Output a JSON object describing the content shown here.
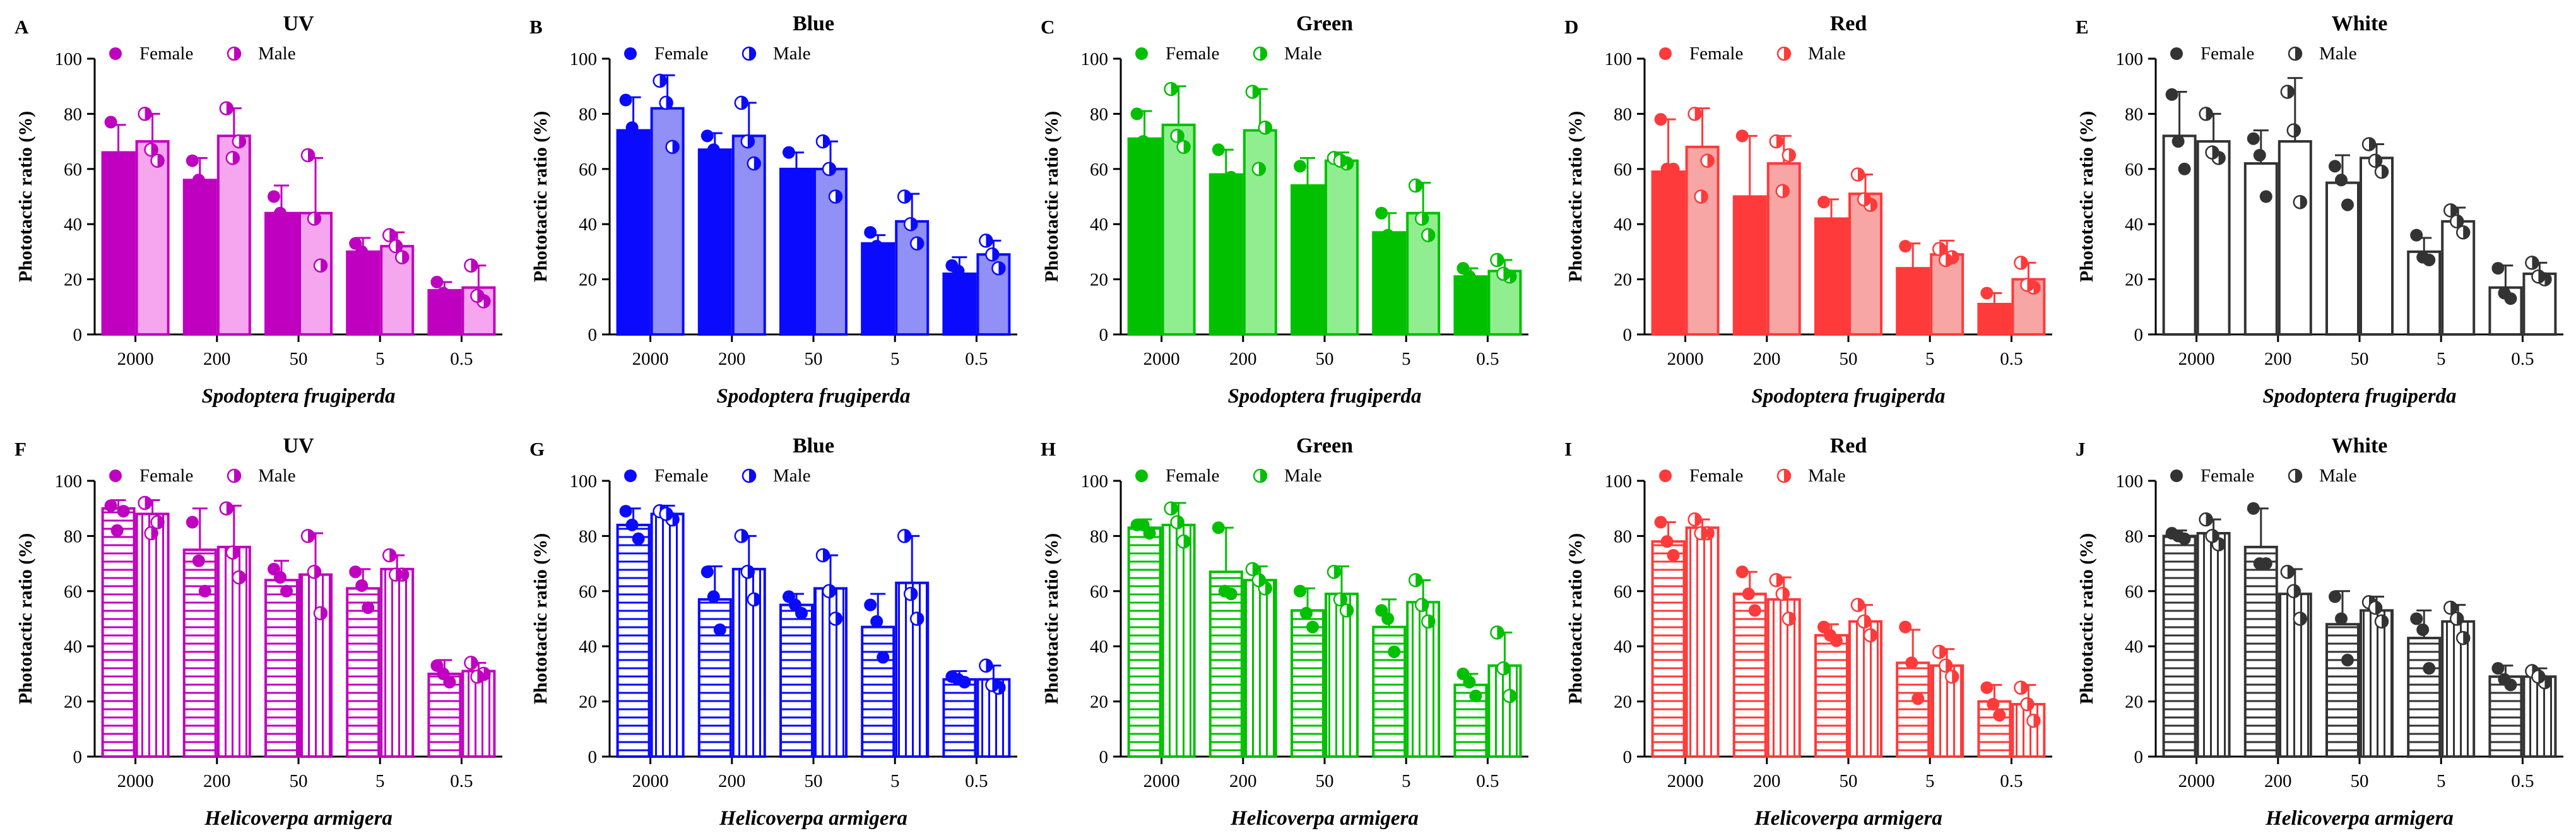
{
  "chart_data": [
    {
      "id": "A",
      "type": "bar",
      "title": "UV",
      "color": "#c000c0",
      "light": "#f5a6ee",
      "species": "Spodoptera frugiperda",
      "hatch": false,
      "xlabel": "Spodoptera frugiperda",
      "ylabel": "Phototactic ratio (%)",
      "ylim": [
        0,
        100
      ],
      "yticks": [
        "0",
        "20",
        "40",
        "60",
        "80",
        "100"
      ],
      "categories": [
        "2000",
        "200",
        "50",
        "5",
        "0.5"
      ],
      "series": [
        {
          "name": "Female",
          "values": [
            66,
            56,
            44,
            30,
            16
          ],
          "errors": [
            10,
            8,
            10,
            5,
            3
          ],
          "points": [
            [
              77,
              63,
              59
            ],
            [
              63,
              49,
              56
            ],
            [
              50,
              38,
              44
            ],
            [
              33,
              27,
              30
            ],
            [
              19,
              14,
              15
            ]
          ]
        },
        {
          "name": "Male",
          "values": [
            70,
            72,
            44,
            32,
            17
          ],
          "errors": [
            10,
            10,
            20,
            5,
            8
          ],
          "points": [
            [
              80,
              63,
              67
            ],
            [
              82,
              70,
              64
            ],
            [
              65,
              25,
              42
            ],
            [
              36,
              28,
              32
            ],
            [
              25,
              12,
              14
            ]
          ]
        }
      ]
    },
    {
      "id": "B",
      "type": "bar",
      "title": "Blue",
      "color": "#0a0aff",
      "light": "#9090f6",
      "species": "Spodoptera frugiperda",
      "hatch": false,
      "xlabel": "Spodoptera frugiperda",
      "ylabel": "Phototactic ratio (%)",
      "ylim": [
        0,
        100
      ],
      "yticks": [
        "0",
        "20",
        "40",
        "60",
        "80",
        "100"
      ],
      "categories": [
        "2000",
        "200",
        "50",
        "5",
        "0.5"
      ],
      "series": [
        {
          "name": "Female",
          "values": [
            74,
            67,
            60,
            33,
            22
          ],
          "errors": [
            12,
            6,
            6,
            3,
            6
          ],
          "points": [
            [
              85,
              62,
              75
            ],
            [
              72,
              62,
              67
            ],
            [
              66,
              57,
              58
            ],
            [
              37,
              30,
              32
            ],
            [
              25,
              17,
              23
            ]
          ]
        },
        {
          "name": "Male",
          "values": [
            82,
            72,
            60,
            41,
            29
          ],
          "errors": [
            12,
            12,
            10,
            10,
            5
          ],
          "points": [
            [
              92,
              68,
              84
            ],
            [
              84,
              62,
              70
            ],
            [
              70,
              50,
              60
            ],
            [
              50,
              33,
              40
            ],
            [
              34,
              24,
              29
            ]
          ]
        }
      ]
    },
    {
      "id": "C",
      "type": "bar",
      "title": "Green",
      "color": "#00c000",
      "light": "#90ee90",
      "species": "Spodoptera frugiperda",
      "hatch": false,
      "xlabel": "Spodoptera frugiperda",
      "ylabel": "Phototactic ratio (%)",
      "ylim": [
        0,
        100
      ],
      "yticks": [
        "0",
        "20",
        "40",
        "60",
        "80",
        "100"
      ],
      "categories": [
        "2000",
        "200",
        "50",
        "5",
        "0.5"
      ],
      "series": [
        {
          "name": "Female",
          "values": [
            71,
            58,
            54,
            37,
            21
          ],
          "errors": [
            10,
            9,
            10,
            7,
            3
          ],
          "points": [
            [
              80,
              64,
              70
            ],
            [
              67,
              57,
              52
            ],
            [
              61,
              52,
              50
            ],
            [
              44,
              33,
              36
            ],
            [
              24,
              19,
              21
            ]
          ]
        },
        {
          "name": "Male",
          "values": [
            76,
            74,
            63,
            44,
            23
          ],
          "errors": [
            14,
            15,
            3,
            11,
            4
          ],
          "points": [
            [
              89,
              68,
              72
            ],
            [
              88,
              75,
              60
            ],
            [
              64,
              62,
              63
            ],
            [
              54,
              36,
              42
            ],
            [
              27,
              21,
              22
            ]
          ]
        }
      ]
    },
    {
      "id": "D",
      "type": "bar",
      "title": "Red",
      "color": "#ff3a3a",
      "light": "#f7a5a5",
      "species": "Spodoptera frugiperda",
      "hatch": false,
      "xlabel": "Spodoptera frugiperda",
      "ylabel": "Phototactic ratio (%)",
      "ylim": [
        0,
        100
      ],
      "yticks": [
        "0",
        "20",
        "40",
        "60",
        "80",
        "100"
      ],
      "categories": [
        "2000",
        "200",
        "50",
        "5",
        "0.5"
      ],
      "series": [
        {
          "name": "Female",
          "values": [
            59,
            50,
            42,
            24,
            11
          ],
          "errors": [
            19,
            22,
            7,
            9,
            4
          ],
          "points": [
            [
              78,
              60,
              60
            ],
            [
              72,
              45,
              35
            ],
            [
              48,
              40,
              39
            ],
            [
              32,
              20,
              21
            ],
            [
              15,
              9,
              8
            ]
          ]
        },
        {
          "name": "Male",
          "values": [
            68,
            62,
            51,
            29,
            20
          ],
          "errors": [
            14,
            10,
            7,
            5,
            6
          ],
          "points": [
            [
              80,
              63,
              50
            ],
            [
              70,
              65,
              52
            ],
            [
              58,
              47,
              49
            ],
            [
              31,
              28,
              27
            ],
            [
              26,
              17,
              18
            ]
          ]
        }
      ]
    },
    {
      "id": "E",
      "type": "bar",
      "title": "White",
      "color": "#333333",
      "light": "#909090",
      "species": "Spodoptera frugiperda",
      "hatch": false,
      "xlabel": "Spodoptera frugiperda",
      "ylabel": "Phototactic ratio (%)",
      "ylim": [
        0,
        100
      ],
      "yticks": [
        "0",
        "20",
        "40",
        "60",
        "80",
        "100"
      ],
      "categories": [
        "2000",
        "200",
        "50",
        "5",
        "0.5"
      ],
      "series": [
        {
          "name": "Female",
          "values": [
            72,
            62,
            55,
            30,
            17
          ],
          "errors": [
            16,
            12,
            10,
            5,
            8
          ],
          "points": [
            [
              87,
              60,
              70
            ],
            [
              71,
              50,
              65
            ],
            [
              61,
              47,
              56
            ],
            [
              36,
              27,
              28
            ],
            [
              24,
              13,
              15
            ]
          ]
        },
        {
          "name": "Male",
          "values": [
            70,
            70,
            64,
            41,
            22
          ],
          "errors": [
            10,
            23,
            5,
            5,
            4
          ],
          "points": [
            [
              80,
              64,
              66
            ],
            [
              88,
              48,
              74
            ],
            [
              69,
              59,
              63
            ],
            [
              45,
              37,
              41
            ],
            [
              26,
              20,
              21
            ]
          ]
        }
      ]
    },
    {
      "id": "F",
      "type": "bar",
      "title": "UV",
      "color": "#c000c0",
      "light": "#f5a6ee",
      "species": "Helicoverpa armigera",
      "hatch": true,
      "xlabel": "Helicoverpa armigera",
      "ylabel": "Phototactic ratio (%)",
      "ylim": [
        0,
        100
      ],
      "yticks": [
        "0",
        "20",
        "40",
        "60",
        "80",
        "100"
      ],
      "categories": [
        "2000",
        "200",
        "50",
        "5",
        "0.5"
      ],
      "series": [
        {
          "name": "Female",
          "values": [
            90,
            75,
            64,
            61,
            30
          ],
          "errors": [
            3,
            15,
            7,
            7,
            5
          ],
          "points": [
            [
              91,
              89,
              82
            ],
            [
              85,
              60,
              71
            ],
            [
              68,
              60,
              65
            ],
            [
              67,
              54,
              62
            ],
            [
              33,
              27,
              30
            ]
          ]
        },
        {
          "name": "Male",
          "values": [
            88,
            76,
            66,
            68,
            31
          ],
          "errors": [
            5,
            15,
            15,
            5,
            3
          ],
          "points": [
            [
              92,
              85,
              81
            ],
            [
              90,
              65,
              74
            ],
            [
              80,
              52,
              67
            ],
            [
              73,
              66,
              66
            ],
            [
              34,
              30,
              29
            ]
          ]
        }
      ]
    },
    {
      "id": "G",
      "type": "bar",
      "title": "Blue",
      "color": "#0a0aff",
      "light": "#9090f6",
      "species": "Helicoverpa armigera",
      "hatch": true,
      "xlabel": "Helicoverpa armigera",
      "ylabel": "Phototactic ratio (%)",
      "ylim": [
        0,
        100
      ],
      "yticks": [
        "0",
        "20",
        "40",
        "60",
        "80",
        "100"
      ],
      "categories": [
        "2000",
        "200",
        "50",
        "5",
        "0.5"
      ],
      "series": [
        {
          "name": "Female",
          "values": [
            84,
            57,
            55,
            47,
            28
          ],
          "errors": [
            6,
            12,
            4,
            12,
            3
          ],
          "points": [
            [
              89,
              79,
              84
            ],
            [
              67,
              46,
              58
            ],
            [
              58,
              52,
              55
            ],
            [
              55,
              36,
              49
            ],
            [
              29,
              27,
              28
            ]
          ]
        },
        {
          "name": "Male",
          "values": [
            88,
            68,
            61,
            63,
            28
          ],
          "errors": [
            3,
            12,
            12,
            17,
            5
          ],
          "points": [
            [
              89,
              86,
              88
            ],
            [
              80,
              57,
              67
            ],
            [
              73,
              50,
              60
            ],
            [
              80,
              50,
              59
            ],
            [
              33,
              25,
              26
            ]
          ]
        }
      ]
    },
    {
      "id": "H",
      "type": "bar",
      "title": "Green",
      "color": "#00c000",
      "light": "#90ee90",
      "species": "Helicoverpa armigera",
      "hatch": true,
      "xlabel": "Helicoverpa armigera",
      "ylabel": "Phototactic ratio (%)",
      "ylim": [
        0,
        100
      ],
      "yticks": [
        "0",
        "20",
        "40",
        "60",
        "80",
        "100"
      ],
      "categories": [
        "2000",
        "200",
        "50",
        "5",
        "0.5"
      ],
      "series": [
        {
          "name": "Female",
          "values": [
            83,
            67,
            53,
            47,
            26
          ],
          "errors": [
            3,
            16,
            8,
            10,
            4
          ],
          "points": [
            [
              84,
              81,
              84
            ],
            [
              83,
              59,
              60
            ],
            [
              60,
              47,
              52
            ],
            [
              53,
              38,
              50
            ],
            [
              30,
              22,
              27
            ]
          ]
        },
        {
          "name": "Male",
          "values": [
            84,
            64,
            59,
            56,
            33
          ],
          "errors": [
            8,
            5,
            10,
            8,
            12
          ],
          "points": [
            [
              90,
              78,
              85
            ],
            [
              68,
              61,
              64
            ],
            [
              67,
              53,
              57
            ],
            [
              64,
              49,
              55
            ],
            [
              45,
              22,
              32
            ]
          ]
        }
      ]
    },
    {
      "id": "I",
      "type": "bar",
      "title": "Red",
      "color": "#ff3a3a",
      "light": "#f7a5a5",
      "species": "Helicoverpa armigera",
      "hatch": true,
      "xlabel": "Helicoverpa armigera",
      "ylabel": "Phototactic ratio (%)",
      "ylim": [
        0,
        100
      ],
      "yticks": [
        "0",
        "20",
        "40",
        "60",
        "80",
        "100"
      ],
      "categories": [
        "2000",
        "200",
        "50",
        "5",
        "0.5"
      ],
      "series": [
        {
          "name": "Female",
          "values": [
            78,
            59,
            44,
            34,
            20
          ],
          "errors": [
            7,
            8,
            4,
            12,
            6
          ],
          "points": [
            [
              85,
              73,
              78
            ],
            [
              67,
              53,
              59
            ],
            [
              47,
              42,
              44
            ],
            [
              47,
              21,
              34
            ],
            [
              25,
              15,
              19
            ]
          ]
        },
        {
          "name": "Male",
          "values": [
            83,
            57,
            49,
            33,
            19
          ],
          "errors": [
            3,
            8,
            6,
            6,
            7
          ],
          "points": [
            [
              86,
              81,
              81
            ],
            [
              64,
              50,
              59
            ],
            [
              55,
              44,
              49
            ],
            [
              38,
              29,
              33
            ],
            [
              25,
              13,
              19
            ]
          ]
        }
      ]
    },
    {
      "id": "J",
      "type": "bar",
      "title": "White",
      "color": "#333333",
      "light": "#909090",
      "species": "Helicoverpa armigera",
      "hatch": true,
      "xlabel": "Helicoverpa armigera",
      "ylabel": "Phototactic ratio (%)",
      "ylim": [
        0,
        100
      ],
      "yticks": [
        "0",
        "20",
        "40",
        "60",
        "80",
        "100"
      ],
      "categories": [
        "2000",
        "200",
        "50",
        "5",
        "0.5"
      ],
      "series": [
        {
          "name": "Female",
          "values": [
            80,
            76,
            48,
            43,
            29
          ],
          "errors": [
            2,
            14,
            12,
            10,
            4
          ],
          "points": [
            [
              81,
              79,
              80
            ],
            [
              90,
              70,
              70
            ],
            [
              58,
              35,
              50
            ],
            [
              50,
              32,
              46
            ],
            [
              32,
              26,
              28
            ]
          ]
        },
        {
          "name": "Male",
          "values": [
            81,
            59,
            53,
            49,
            29
          ],
          "errors": [
            5,
            9,
            5,
            6,
            3
          ],
          "points": [
            [
              86,
              77,
              80
            ],
            [
              67,
              50,
              60
            ],
            [
              56,
              49,
              54
            ],
            [
              54,
              43,
              50
            ],
            [
              31,
              27,
              29
            ]
          ]
        }
      ]
    }
  ]
}
